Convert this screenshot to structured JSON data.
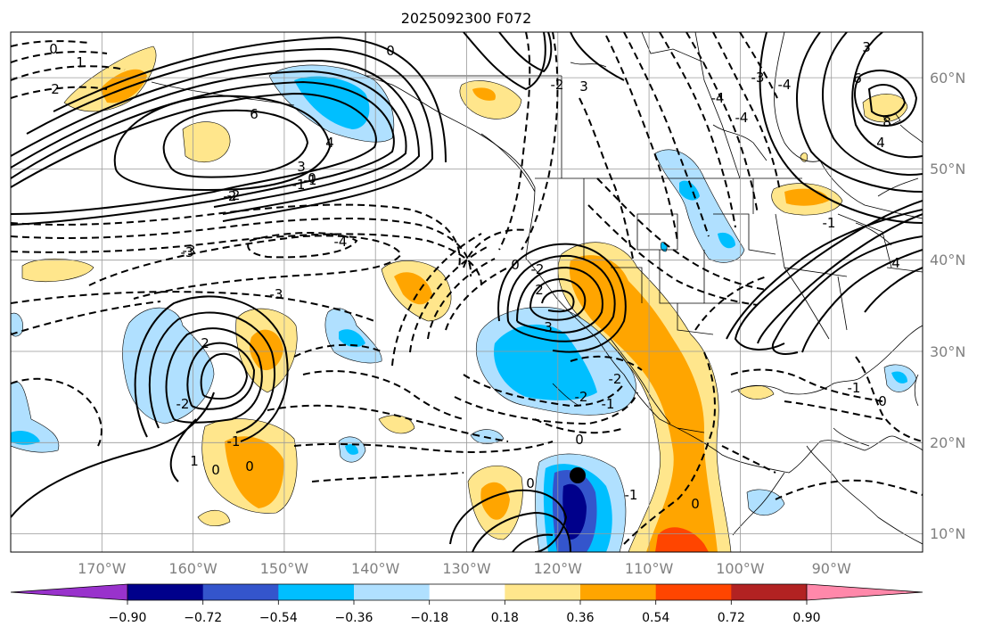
{
  "title": "2025092300 F072",
  "map": {
    "lon_range": [
      -180,
      -80
    ],
    "lat_range": [
      8,
      65
    ],
    "lon_ticks": [
      "170°W",
      "160°W",
      "150°W",
      "140°W",
      "130°W",
      "120°W",
      "110°W",
      "100°W",
      "90°W"
    ],
    "lat_ticks": [
      "60°N",
      "50°N",
      "40°N",
      "30°N",
      "20°N",
      "10°N"
    ],
    "grid": true,
    "contour_labels": [
      "0",
      "1",
      "2",
      "6",
      "4",
      "3",
      "-1",
      "-2",
      "-3",
      "-4",
      "0",
      "3",
      "-2",
      "2",
      "-3",
      "-4",
      "-2",
      "-1",
      "0",
      "0",
      "-1",
      "3",
      "6",
      "8",
      "4",
      "-4",
      "-3",
      "0",
      "-4",
      "-2",
      "-2",
      "0",
      "0",
      "-1",
      "-2",
      "-3",
      "-1",
      "1",
      "0",
      "0",
      "2",
      "3",
      "-2",
      "-1",
      "-1",
      "0",
      "4"
    ],
    "marker": "storm-center-dot"
  },
  "colorbar": {
    "extend": "both",
    "tick_labels": [
      "−0.90",
      "−0.72",
      "−0.54",
      "−0.36",
      "−0.18",
      "0.18",
      "0.36",
      "0.54",
      "0.72",
      "0.90"
    ],
    "colors": [
      "#9932cc",
      "#00008b",
      "#3455cc",
      "#00bfff",
      "#b0e0ff",
      "#ffffff",
      "#ffe68c",
      "#ffa500",
      "#ff4500",
      "#b22222",
      "#ff88aa"
    ]
  }
}
